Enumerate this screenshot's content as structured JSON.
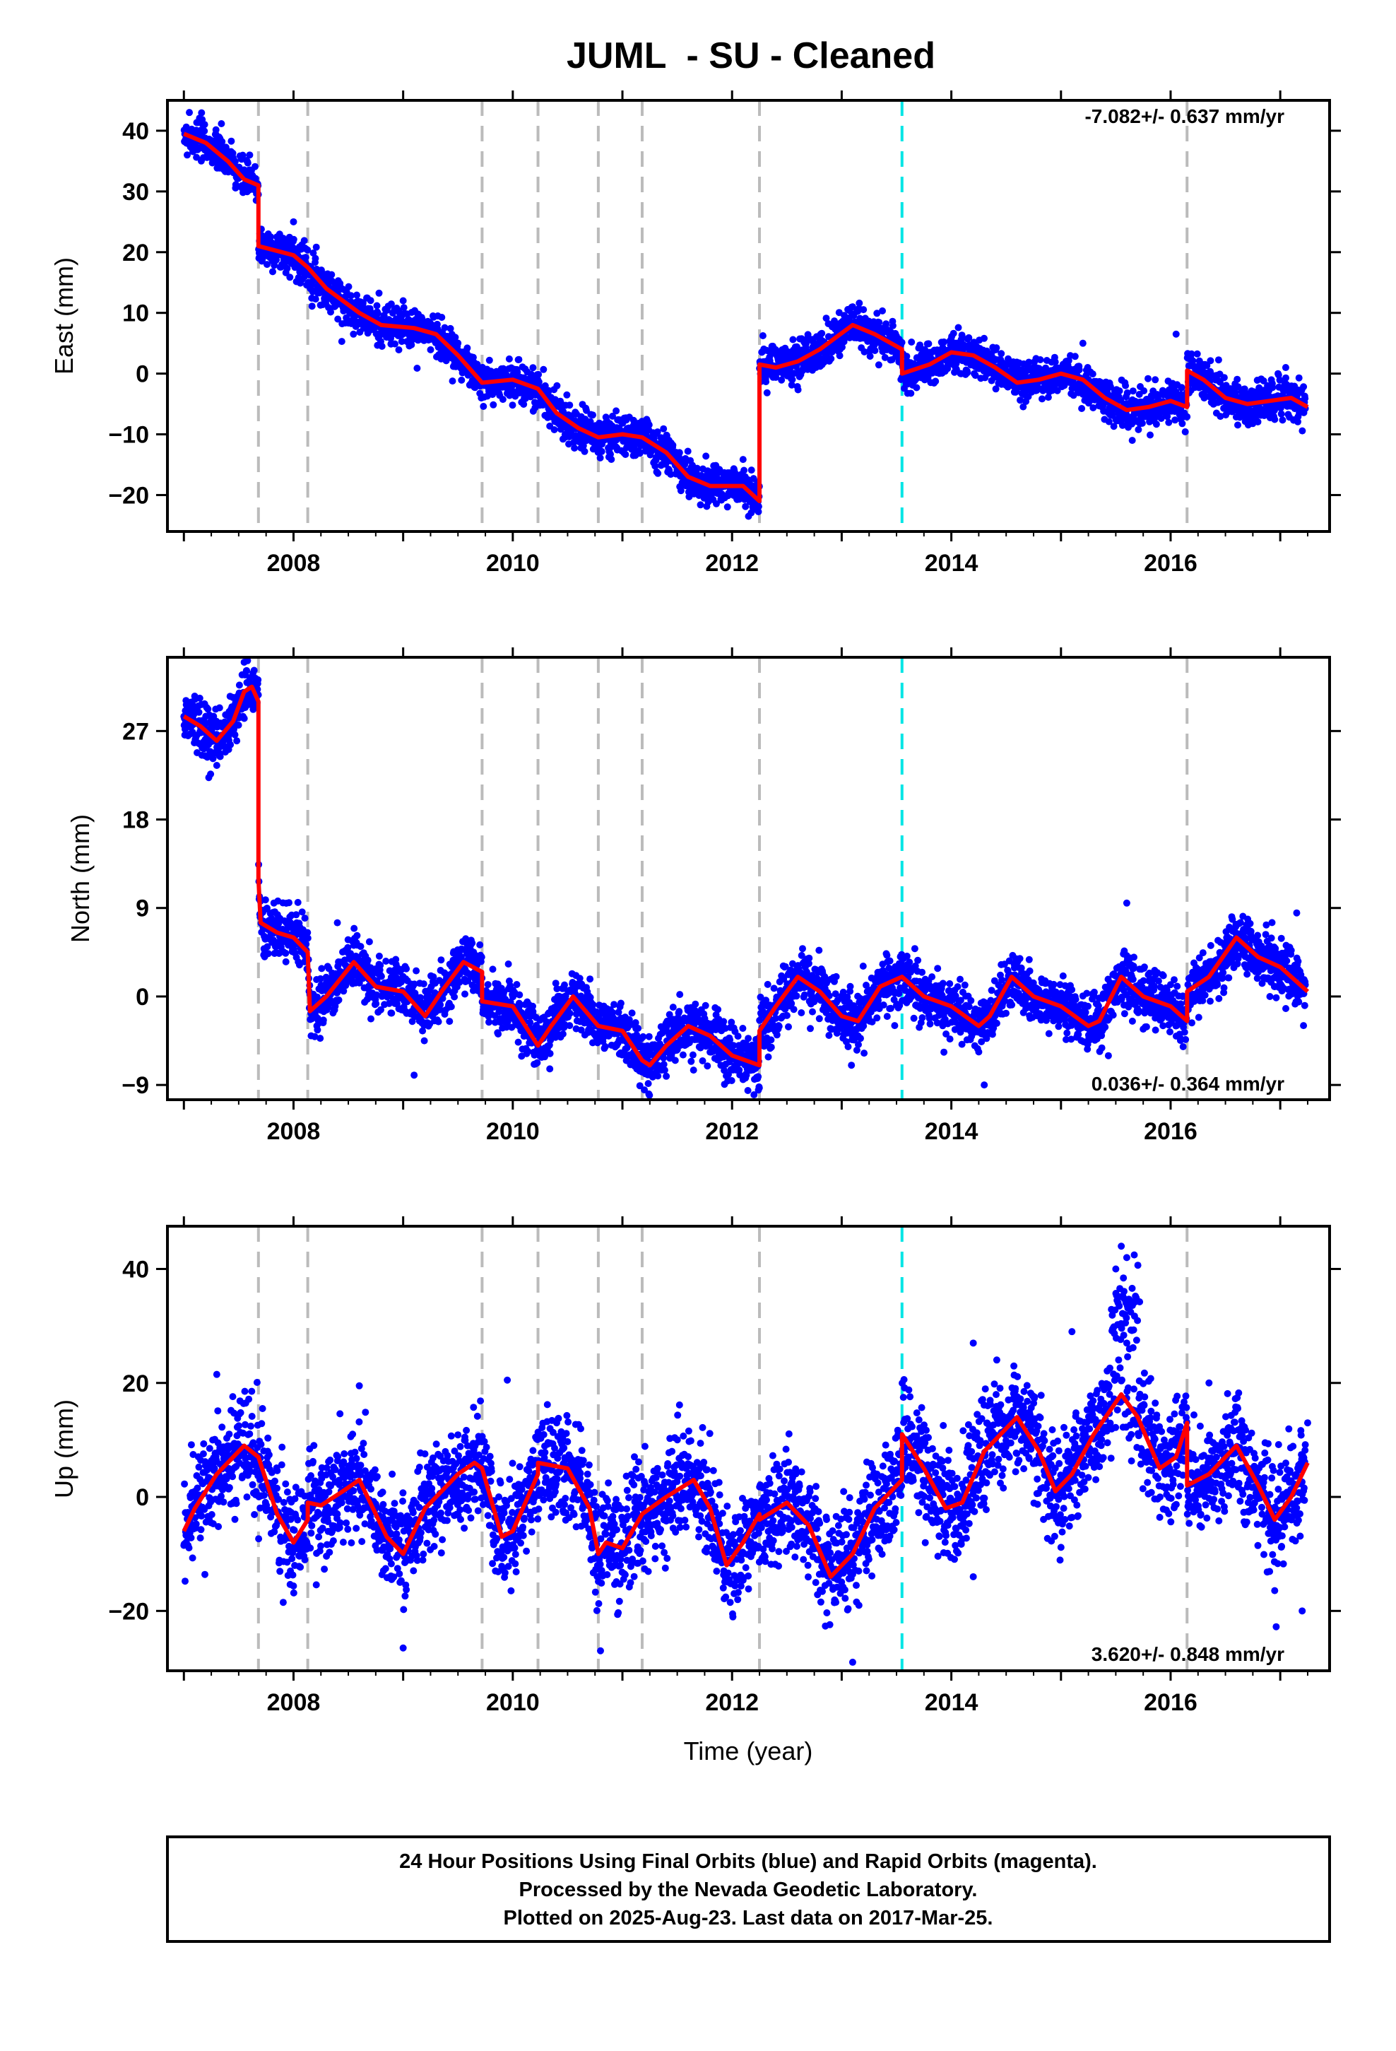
{
  "figure": {
    "title": "JUML  - SU - Cleaned",
    "xlabel": "Time (year)",
    "footer": [
      "24 Hour Positions Using Final Orbits (blue) and Rapid Orbits (magenta).",
      "Processed by the Nevada Geodetic Laboratory.",
      "Plotted on 2025-Aug-23. Last data on 2017-Mar-25."
    ]
  },
  "colors": {
    "final_orbits": "#0000ff",
    "model_fit": "#ff0000",
    "equipment_change_line": "#bbbbbb",
    "earthquake_line": "#00e5e5"
  },
  "chart_data": [
    {
      "type": "scatter",
      "ylabel": "East (mm)",
      "rate": "-7.082+/- 0.637 mm/yr",
      "rate_position": "top-right",
      "xlim": [
        2006.85,
        2017.45
      ],
      "ylim": [
        -26,
        45
      ],
      "xticks": [
        2008,
        2010,
        2012,
        2014,
        2016
      ],
      "yticks": [
        -20,
        -10,
        0,
        10,
        20,
        30,
        40
      ],
      "offset_lines_gray": [
        2007.68,
        2008.13,
        2009.72,
        2010.23,
        2010.78,
        2011.18,
        2012.25,
        2016.15
      ],
      "offset_lines_cyan": [
        2013.55
      ],
      "model": [
        [
          2007.0,
          39.5
        ],
        [
          2007.2,
          38
        ],
        [
          2007.4,
          35
        ],
        [
          2007.55,
          32
        ],
        [
          2007.68,
          31
        ],
        [
          2007.68,
          21
        ],
        [
          2008.0,
          19.5
        ],
        [
          2008.13,
          17.5
        ],
        [
          2008.3,
          14
        ],
        [
          2008.6,
          10
        ],
        [
          2008.8,
          8
        ],
        [
          2009.1,
          7.5
        ],
        [
          2009.3,
          6.5
        ],
        [
          2009.5,
          3
        ],
        [
          2009.72,
          -1.5
        ],
        [
          2010.0,
          -1
        ],
        [
          2010.23,
          -2.5
        ],
        [
          2010.4,
          -6.5
        ],
        [
          2010.6,
          -9
        ],
        [
          2010.78,
          -10.5
        ],
        [
          2011.0,
          -10
        ],
        [
          2011.18,
          -10.5
        ],
        [
          2011.4,
          -13
        ],
        [
          2011.6,
          -17
        ],
        [
          2011.8,
          -18.5
        ],
        [
          2012.1,
          -18.5
        ],
        [
          2012.25,
          -21
        ],
        [
          2012.25,
          1.5
        ],
        [
          2012.4,
          1
        ],
        [
          2012.6,
          2
        ],
        [
          2012.8,
          4
        ],
        [
          2013.1,
          8
        ],
        [
          2013.3,
          6.5
        ],
        [
          2013.55,
          4
        ],
        [
          2013.55,
          0
        ],
        [
          2013.8,
          1.5
        ],
        [
          2014.0,
          3.5
        ],
        [
          2014.2,
          3
        ],
        [
          2014.4,
          1
        ],
        [
          2014.6,
          -1.5
        ],
        [
          2014.8,
          -1
        ],
        [
          2015.0,
          0
        ],
        [
          2015.2,
          -1
        ],
        [
          2015.4,
          -4
        ],
        [
          2015.6,
          -6
        ],
        [
          2015.8,
          -5.5
        ],
        [
          2016.0,
          -4.5
        ],
        [
          2016.15,
          -5.5
        ],
        [
          2016.15,
          0.5
        ],
        [
          2016.3,
          -1
        ],
        [
          2016.5,
          -4
        ],
        [
          2016.7,
          -5
        ],
        [
          2016.9,
          -4.5
        ],
        [
          2017.1,
          -4
        ],
        [
          2017.25,
          -5.5
        ]
      ],
      "scatter_spread_mm": 1.6,
      "date_range": [
        2007.0,
        2017.23
      ],
      "outliers": [
        [
          2007.05,
          43
        ],
        [
          2007.6,
          36
        ],
        [
          2008.0,
          25
        ],
        [
          2008.1,
          16
        ],
        [
          2009.0,
          12
        ],
        [
          2011.1,
          -13.5
        ],
        [
          2012.15,
          -23.5
        ],
        [
          2012.1,
          -17
        ],
        [
          2013.1,
          11
        ],
        [
          2014.1,
          6
        ],
        [
          2015.2,
          5
        ],
        [
          2015.65,
          -11
        ],
        [
          2016.05,
          6.5
        ],
        [
          2017.05,
          1
        ]
      ]
    },
    {
      "type": "scatter",
      "ylabel": "North (mm)",
      "rate": "0.036+/- 0.364 mm/yr",
      "rate_position": "bottom-right",
      "xlim": [
        2006.85,
        2017.45
      ],
      "ylim": [
        -10.5,
        34.5
      ],
      "xticks": [
        2008,
        2010,
        2012,
        2014,
        2016
      ],
      "yticks": [
        -9,
        0,
        9,
        18,
        27
      ],
      "offset_lines_gray": [
        2007.68,
        2008.13,
        2009.72,
        2010.23,
        2010.78,
        2011.18,
        2012.25,
        2016.15
      ],
      "offset_lines_cyan": [
        2013.55
      ],
      "model": [
        [
          2007.0,
          28.5
        ],
        [
          2007.15,
          27.5
        ],
        [
          2007.3,
          26
        ],
        [
          2007.45,
          28
        ],
        [
          2007.55,
          31
        ],
        [
          2007.62,
          31.5
        ],
        [
          2007.68,
          30
        ],
        [
          2007.68,
          12
        ],
        [
          2007.7,
          7.5
        ],
        [
          2007.85,
          6.5
        ],
        [
          2008.0,
          6
        ],
        [
          2008.13,
          4.5
        ],
        [
          2008.15,
          -1.5
        ],
        [
          2008.3,
          0
        ],
        [
          2008.55,
          3.5
        ],
        [
          2008.75,
          1
        ],
        [
          2009.0,
          0.5
        ],
        [
          2009.2,
          -2
        ],
        [
          2009.35,
          0.5
        ],
        [
          2009.55,
          3.5
        ],
        [
          2009.72,
          2.5
        ],
        [
          2009.72,
          -0.5
        ],
        [
          2010.0,
          -1
        ],
        [
          2010.23,
          -5
        ],
        [
          2010.35,
          -3
        ],
        [
          2010.55,
          0
        ],
        [
          2010.78,
          -3
        ],
        [
          2011.0,
          -3.5
        ],
        [
          2011.18,
          -6.5
        ],
        [
          2011.25,
          -7
        ],
        [
          2011.4,
          -5
        ],
        [
          2011.6,
          -3
        ],
        [
          2011.8,
          -4
        ],
        [
          2012.0,
          -6
        ],
        [
          2012.25,
          -7
        ],
        [
          2012.25,
          -3.5
        ],
        [
          2012.4,
          -1
        ],
        [
          2012.6,
          2
        ],
        [
          2012.8,
          0.5
        ],
        [
          2013.0,
          -2
        ],
        [
          2013.15,
          -2.5
        ],
        [
          2013.35,
          1
        ],
        [
          2013.55,
          2
        ],
        [
          2013.75,
          0
        ],
        [
          2014.0,
          -1
        ],
        [
          2014.25,
          -3
        ],
        [
          2014.35,
          -2
        ],
        [
          2014.55,
          2
        ],
        [
          2014.75,
          0
        ],
        [
          2015.0,
          -1
        ],
        [
          2015.25,
          -3
        ],
        [
          2015.35,
          -2.5
        ],
        [
          2015.55,
          2
        ],
        [
          2015.75,
          0
        ],
        [
          2016.0,
          -1
        ],
        [
          2016.15,
          -2.5
        ],
        [
          2016.15,
          0.5
        ],
        [
          2016.35,
          2
        ],
        [
          2016.6,
          6
        ],
        [
          2016.8,
          4
        ],
        [
          2017.0,
          3
        ],
        [
          2017.25,
          0.5
        ]
      ],
      "scatter_spread_mm": 1.4,
      "date_range": [
        2007.0,
        2017.23
      ],
      "outliers": [
        [
          2007.3,
          23.5
        ],
        [
          2007.55,
          34
        ],
        [
          2008.4,
          7.5
        ],
        [
          2009.1,
          -8
        ],
        [
          2011.2,
          -9.5
        ],
        [
          2012.2,
          -10
        ],
        [
          2014.3,
          -9
        ],
        [
          2015.6,
          9.5
        ],
        [
          2017.15,
          8.5
        ],
        [
          2016.4,
          2.5
        ]
      ]
    },
    {
      "type": "scatter",
      "ylabel": "Up (mm)",
      "rate": "3.620+/- 0.848 mm/yr",
      "rate_position": "bottom-right",
      "xlim": [
        2006.85,
        2017.45
      ],
      "ylim": [
        -30.5,
        47.5
      ],
      "xticks": [
        2008,
        2010,
        2012,
        2014,
        2016
      ],
      "yticks": [
        -20,
        0,
        20,
        40
      ],
      "offset_lines_gray": [
        2007.68,
        2008.13,
        2009.72,
        2010.23,
        2010.78,
        2011.18,
        2012.25,
        2016.15
      ],
      "offset_lines_cyan": [
        2013.55
      ],
      "model": [
        [
          2007.0,
          -6
        ],
        [
          2007.1,
          -2
        ],
        [
          2007.3,
          4
        ],
        [
          2007.55,
          9
        ],
        [
          2007.68,
          7
        ],
        [
          2007.85,
          -3
        ],
        [
          2008.0,
          -8
        ],
        [
          2008.13,
          -4
        ],
        [
          2008.13,
          -1
        ],
        [
          2008.25,
          -1.5
        ],
        [
          2008.45,
          1
        ],
        [
          2008.6,
          3
        ],
        [
          2008.85,
          -7
        ],
        [
          2009.0,
          -10
        ],
        [
          2009.2,
          -2
        ],
        [
          2009.5,
          4
        ],
        [
          2009.65,
          6
        ],
        [
          2009.72,
          5
        ],
        [
          2009.9,
          -7
        ],
        [
          2010.0,
          -6
        ],
        [
          2010.23,
          4
        ],
        [
          2010.23,
          6
        ],
        [
          2010.5,
          5
        ],
        [
          2010.7,
          -2
        ],
        [
          2010.78,
          -10
        ],
        [
          2010.85,
          -8
        ],
        [
          2011.0,
          -9
        ],
        [
          2011.18,
          -3
        ],
        [
          2011.4,
          0
        ],
        [
          2011.65,
          3
        ],
        [
          2011.8,
          -2
        ],
        [
          2011.95,
          -12
        ],
        [
          2012.1,
          -8
        ],
        [
          2012.25,
          -3
        ],
        [
          2012.25,
          -4
        ],
        [
          2012.5,
          -1
        ],
        [
          2012.7,
          -5
        ],
        [
          2012.9,
          -14
        ],
        [
          2013.1,
          -10
        ],
        [
          2013.3,
          -2
        ],
        [
          2013.55,
          3
        ],
        [
          2013.55,
          11
        ],
        [
          2013.75,
          5
        ],
        [
          2013.95,
          -2
        ],
        [
          2014.1,
          -1
        ],
        [
          2014.3,
          8
        ],
        [
          2014.6,
          14
        ],
        [
          2014.8,
          8
        ],
        [
          2014.95,
          1
        ],
        [
          2015.1,
          4
        ],
        [
          2015.3,
          11
        ],
        [
          2015.55,
          18
        ],
        [
          2015.7,
          14
        ],
        [
          2015.9,
          5
        ],
        [
          2016.05,
          7
        ],
        [
          2016.15,
          13
        ],
        [
          2016.15,
          2
        ],
        [
          2016.35,
          4
        ],
        [
          2016.6,
          9
        ],
        [
          2016.8,
          2
        ],
        [
          2016.95,
          -4
        ],
        [
          2017.1,
          0
        ],
        [
          2017.25,
          6
        ]
      ],
      "scatter_spread_mm": 4.5,
      "date_range": [
        2007.0,
        2017.23
      ],
      "outliers": [
        [
          2007.3,
          21.5
        ],
        [
          2008.6,
          19.5
        ],
        [
          2009.0,
          -26.5
        ],
        [
          2009.95,
          20.5
        ],
        [
          2010.8,
          -27
        ],
        [
          2013.1,
          -29
        ],
        [
          2014.2,
          27
        ],
        [
          2014.2,
          -14
        ],
        [
          2015.1,
          29
        ],
        [
          2015.55,
          44
        ],
        [
          2015.6,
          42
        ],
        [
          2015.5,
          40
        ],
        [
          2015.65,
          34
        ],
        [
          2015.55,
          30
        ],
        [
          2015.6,
          27
        ],
        [
          2016.35,
          20
        ],
        [
          2017.2,
          -20
        ],
        [
          2017.25,
          13
        ]
      ]
    }
  ]
}
